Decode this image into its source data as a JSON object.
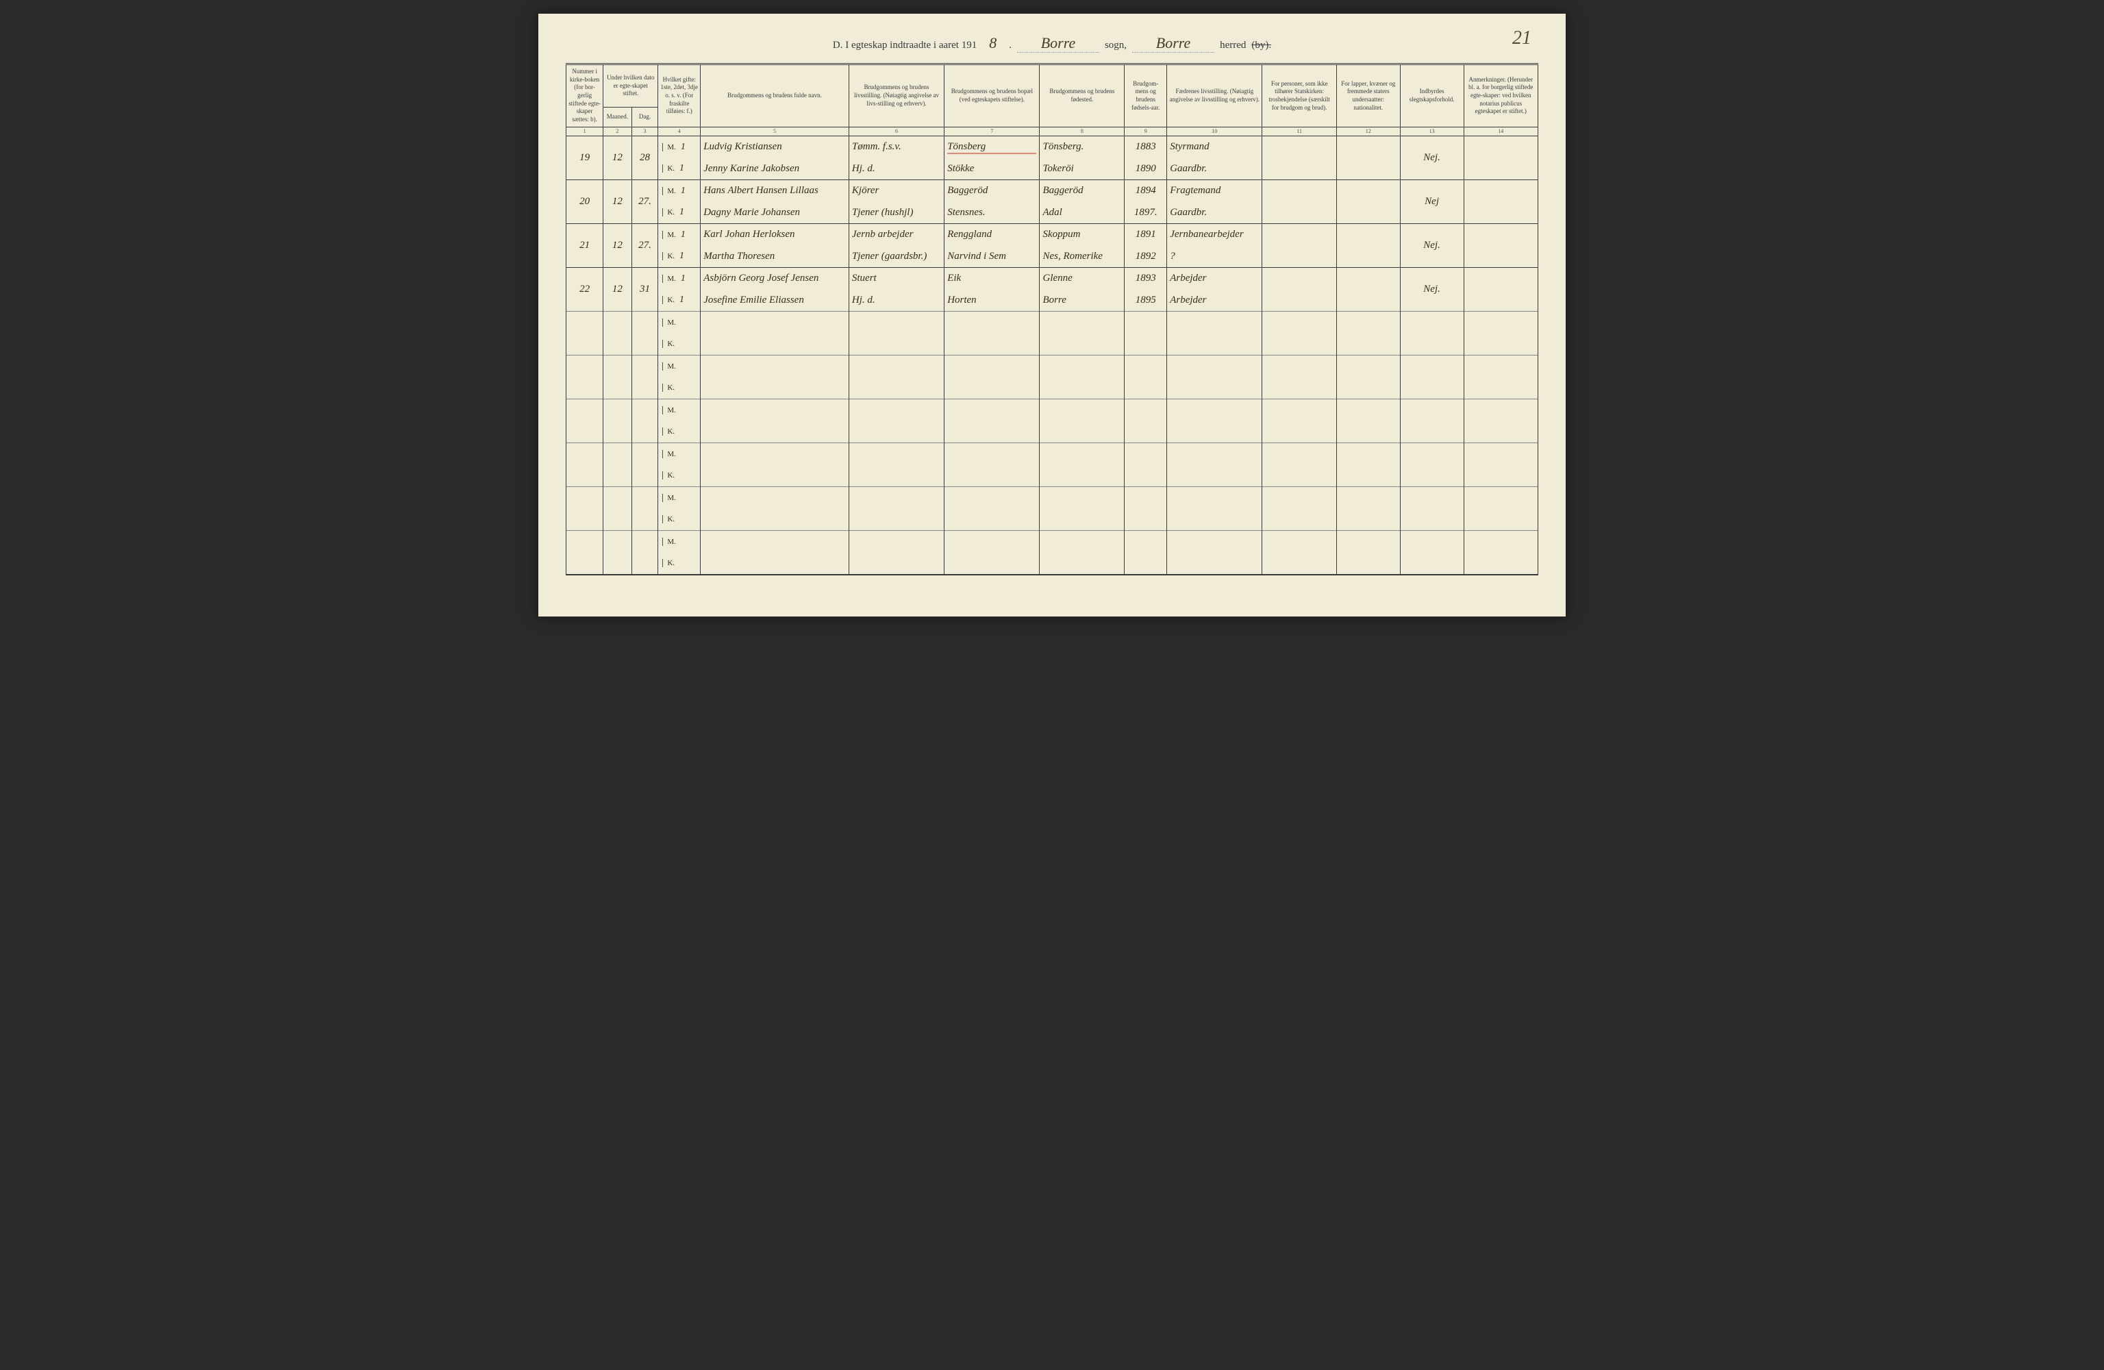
{
  "page_number": "21",
  "title": {
    "prefix": "D.  I egteskap indtraadte i aaret 191",
    "year_suffix": "8",
    "sogn_value": "Borre",
    "sogn_label": "sogn,",
    "herred_value": "Borre",
    "herred_label": "herred",
    "by_strike": "(by)."
  },
  "columns": [
    {
      "num": "1",
      "label": "Nummer i kirke-boken (for bor-gerlig stiftede egte-skaper sættes: b)."
    },
    {
      "num": "2",
      "label": "Under hvilken dato er egte-skapet stiftet.",
      "sub1": "Maaned.",
      "sub2": "Dag."
    },
    {
      "num": "3",
      "label": ""
    },
    {
      "num": "4",
      "label": "Hvilket gifte: 1ste, 2det, 3dje o. s. v. (For fraskilte tilføies: f.)"
    },
    {
      "num": "5",
      "label": "Brudgommens og brudens fulde navn."
    },
    {
      "num": "6",
      "label": "Brudgommens og brudens livsstilling. (Nøiagtig angivelse av livs-stilling og erhverv)."
    },
    {
      "num": "7",
      "label": "Brudgommens og brudens bopæl (ved egteskapets stiftelse)."
    },
    {
      "num": "8",
      "label": "Brudgommens og brudens fødested."
    },
    {
      "num": "9",
      "label": "Brudgom-mens og brudens fødsels-aar."
    },
    {
      "num": "10",
      "label": "Fædrenes livsstilling. (Nøiagtig angivelse av livsstilling og erhverv)."
    },
    {
      "num": "11",
      "label": "For personer, som ikke tilhører Statskirken: trosbekjendelse (særskilt for brudgom og brud)."
    },
    {
      "num": "12",
      "label": "For lapper, kvæner og fremmede staters undersaatter: nationalitet."
    },
    {
      "num": "13",
      "label": "Indbyrdes slegtskapsforhold."
    },
    {
      "num": "14",
      "label": "Anmerkninger. (Herunder bl. a. for borgerlig stiftede egte-skaper: ved hvilken notarius publicus egteskapet er stiftet.)"
    }
  ],
  "entries": [
    {
      "num": "19",
      "maaned": "12",
      "dag": "28",
      "groom": {
        "gifte": "1",
        "navn": "Ludvig Kristiansen",
        "stilling": "Tømm. f.s.v.",
        "bopael": "Tönsberg",
        "fodested": "Tönsberg.",
        "aar": "1883",
        "faedre": "Styrmand",
        "redline": true
      },
      "bride": {
        "gifte": "1",
        "navn": "Jenny Karine Jakobsen",
        "stilling": "Hj. d.",
        "bopael": "Stökke",
        "fodested": "Tokeröi",
        "aar": "1890",
        "faedre": "Gaardbr."
      },
      "slegt": "Nej."
    },
    {
      "num": "20",
      "maaned": "12",
      "dag": "27.",
      "groom": {
        "gifte": "1",
        "navn": "Hans Albert Hansen Lillaas",
        "stilling": "Kjörer",
        "bopael": "Baggeröd",
        "fodested": "Baggeröd",
        "aar": "1894",
        "faedre": "Fragtemand"
      },
      "bride": {
        "gifte": "1",
        "navn": "Dagny Marie Johansen",
        "stilling": "Tjener (hushjl)",
        "bopael": "Stensnes.",
        "fodested": "Adal",
        "aar": "1897.",
        "faedre": "Gaardbr."
      },
      "slegt": "Nej"
    },
    {
      "num": "21",
      "maaned": "12",
      "dag": "27.",
      "groom": {
        "gifte": "1",
        "navn": "Karl Johan Herloksen",
        "stilling": "Jernb arbejder",
        "bopael": "Renggland",
        "fodested": "Skoppum",
        "aar": "1891",
        "faedre": "Jernbanearbejder"
      },
      "bride": {
        "gifte": "1",
        "navn": "Martha Thoresen",
        "stilling": "Tjener (gaardsbr.)",
        "bopael": "Narvind i Sem",
        "fodested": "Nes, Romerike",
        "aar": "1892",
        "faedre": "?"
      },
      "slegt": "Nej."
    },
    {
      "num": "22",
      "maaned": "12",
      "dag": "31",
      "groom": {
        "gifte": "1",
        "navn": "Asbjörn Georg Josef Jensen",
        "stilling": "Stuert",
        "bopael": "Eik",
        "fodested": "Glenne",
        "aar": "1893",
        "faedre": "Arbejder"
      },
      "bride": {
        "gifte": "1",
        "navn": "Josefine Emilie Eliassen",
        "stilling": "Hj. d.",
        "bopael": "Horten",
        "fodested": "Borre",
        "aar": "1895",
        "faedre": "Arbejder"
      },
      "slegt": "Nej."
    }
  ],
  "blank_rows": 6,
  "mk_labels": {
    "m": "M.",
    "k": "K."
  }
}
